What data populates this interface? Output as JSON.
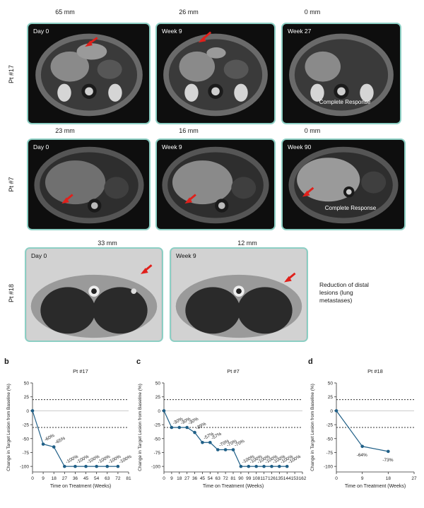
{
  "row1": {
    "patient": "Pt #17",
    "sizes": [
      "65 mm",
      "26 mm",
      "0 mm"
    ],
    "timepoints": [
      "Day 0",
      "Week 9",
      "Week 27"
    ],
    "note": "Complete Response"
  },
  "row2": {
    "patient": "Pt #7",
    "sizes": [
      "23 mm",
      "16 mm",
      "0 mm"
    ],
    "timepoints": [
      "Day 0",
      "Week 9",
      "Week 90"
    ],
    "note": "Complete Response"
  },
  "row3": {
    "patient": "Pt #18",
    "sizes": [
      "33 mm",
      "12 mm"
    ],
    "timepoints": [
      "Day 0",
      "Week 9"
    ],
    "note": "Reduction of distal lesions (lung metastases)"
  },
  "colors": {
    "frame": "#8ccfc4",
    "arrow": "#e0201b",
    "line": "#1f5f87",
    "dotted": "#333333"
  },
  "chart_data": [
    {
      "panel": "b",
      "type": "line",
      "title": "Pt #17",
      "xlabel": "Time on Treatment (Weeks)",
      "ylabel": "Change in Target Lesion from Baseline (%)",
      "xticks": [
        0,
        9,
        18,
        27,
        36,
        45,
        54,
        63,
        72,
        81
      ],
      "yticks": [
        50,
        25,
        0,
        -25,
        -50,
        -75,
        -100
      ],
      "ylim": [
        -110,
        50
      ],
      "xlim": [
        0,
        81
      ],
      "thresholds": [
        20,
        -30
      ],
      "x": [
        0,
        9,
        18,
        27,
        36,
        45,
        54,
        63,
        72
      ],
      "y": [
        0,
        -60,
        -65,
        -100,
        -100,
        -100,
        -100,
        -100,
        -100
      ],
      "labels": [
        "",
        "-60%",
        "-65%",
        "-100%",
        "-100%",
        "-100%",
        "-100%",
        "-100%",
        "-100%"
      ]
    },
    {
      "panel": "c",
      "type": "line",
      "title": "Pt #7",
      "xlabel": "Time on Treatment (Weeks)",
      "ylabel": "Change in Target Lesion from Baseline (%)",
      "xticks": [
        0,
        9,
        18,
        27,
        36,
        45,
        54,
        63,
        72,
        81,
        90,
        99,
        108,
        117,
        126,
        135,
        144,
        153,
        162
      ],
      "yticks": [
        50,
        25,
        0,
        -25,
        -50,
        -75,
        -100
      ],
      "ylim": [
        -110,
        50
      ],
      "xlim": [
        0,
        162
      ],
      "thresholds": [
        20,
        -30
      ],
      "x": [
        0,
        9,
        18,
        27,
        36,
        45,
        54,
        63,
        72,
        81,
        90,
        99,
        108,
        117,
        126,
        135,
        144
      ],
      "y": [
        0,
        -30,
        -30,
        -30,
        -39,
        -57,
        -57,
        -70,
        -70,
        -70,
        -100,
        -100,
        -100,
        -100,
        -100,
        -100,
        -100
      ],
      "labels": [
        "",
        "-30%",
        "-30%",
        "-30%",
        "-39%",
        "-57%",
        "-57%",
        "-70%",
        "-70%",
        "-70%",
        "-100%",
        "-100%",
        "-100%",
        "-100%",
        "-100%",
        "-100%",
        "-100%"
      ]
    },
    {
      "panel": "d",
      "type": "line",
      "title": "Pt #18",
      "xlabel": "Time on Treatment (Weeks)",
      "ylabel": "Change in Target Lesion from Baseline (%)",
      "xticks": [
        0,
        9,
        18,
        27
      ],
      "yticks": [
        50,
        25,
        0,
        -25,
        -50,
        -75,
        -100
      ],
      "ylim": [
        -110,
        50
      ],
      "xlim": [
        0,
        27
      ],
      "thresholds": [
        20,
        -30
      ],
      "x": [
        0,
        9,
        18
      ],
      "y": [
        0,
        -64,
        -73
      ],
      "labels": [
        "",
        "-64%",
        "-73%"
      ]
    }
  ]
}
